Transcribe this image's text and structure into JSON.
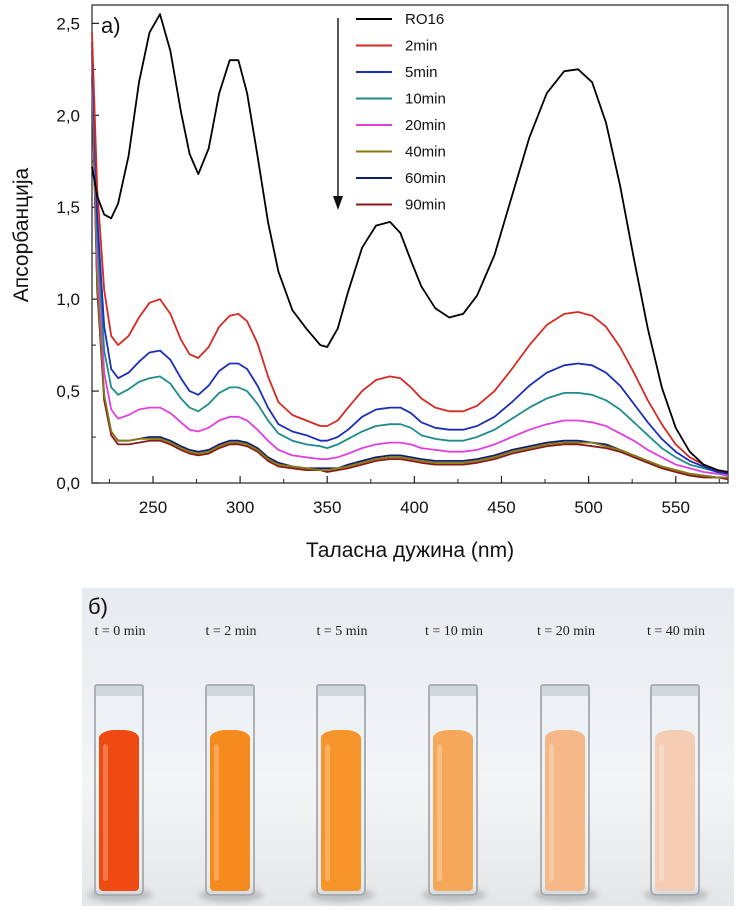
{
  "chart_data": {
    "type": "line",
    "panel_label": "а)",
    "xlabel": "Таласна дужина (nm)",
    "ylabel": "Апсорбанција",
    "xlim": [
      215,
      580
    ],
    "ylim": [
      0,
      2.6
    ],
    "x_ticks": [
      250,
      300,
      350,
      400,
      450,
      500,
      550
    ],
    "x_tick_labels": [
      "250",
      "300",
      "350",
      "400",
      "450",
      "500",
      "550"
    ],
    "y_ticks": [
      0,
      0.5,
      1.0,
      1.5,
      2.0,
      2.5
    ],
    "y_tick_labels": [
      "0,0",
      "0,5",
      "1,0",
      "1,5",
      "2,0",
      "2,5"
    ],
    "legend_position": "top-center",
    "annotation": "arrow pointing down (decreasing absorbance with time)",
    "x": [
      215,
      218,
      222,
      226,
      230,
      236,
      242,
      248,
      254,
      260,
      266,
      271,
      276,
      282,
      288,
      294,
      299,
      304,
      310,
      316,
      322,
      330,
      338,
      346,
      350,
      356,
      362,
      370,
      378,
      386,
      392,
      398,
      404,
      412,
      420,
      428,
      436,
      446,
      456,
      466,
      476,
      486,
      494,
      502,
      510,
      518,
      526,
      534,
      542,
      550,
      558,
      566,
      574,
      580
    ],
    "series": [
      {
        "name": "RO16",
        "color": "#000000",
        "values": [
          1.72,
          1.56,
          1.46,
          1.44,
          1.52,
          1.78,
          2.18,
          2.45,
          2.55,
          2.35,
          2.02,
          1.79,
          1.68,
          1.82,
          2.12,
          2.3,
          2.3,
          2.12,
          1.78,
          1.42,
          1.15,
          0.94,
          0.84,
          0.75,
          0.74,
          0.84,
          1.04,
          1.28,
          1.4,
          1.42,
          1.36,
          1.21,
          1.07,
          0.95,
          0.9,
          0.92,
          1.02,
          1.24,
          1.56,
          1.88,
          2.12,
          2.24,
          2.25,
          2.18,
          1.96,
          1.62,
          1.22,
          0.84,
          0.52,
          0.3,
          0.17,
          0.1,
          0.07,
          0.06
        ]
      },
      {
        "name": "2min",
        "color": "#d42a22",
        "values": [
          2.45,
          1.6,
          1.05,
          0.8,
          0.75,
          0.8,
          0.9,
          0.98,
          1.0,
          0.92,
          0.78,
          0.7,
          0.68,
          0.74,
          0.85,
          0.91,
          0.92,
          0.88,
          0.76,
          0.58,
          0.44,
          0.37,
          0.34,
          0.31,
          0.31,
          0.34,
          0.41,
          0.5,
          0.56,
          0.58,
          0.57,
          0.52,
          0.46,
          0.41,
          0.39,
          0.39,
          0.42,
          0.5,
          0.62,
          0.75,
          0.86,
          0.92,
          0.93,
          0.91,
          0.85,
          0.74,
          0.6,
          0.45,
          0.32,
          0.21,
          0.14,
          0.1,
          0.07,
          0.06
        ]
      },
      {
        "name": "5min",
        "color": "#1a2fb8",
        "values": [
          2.4,
          1.45,
          0.85,
          0.62,
          0.57,
          0.6,
          0.66,
          0.71,
          0.72,
          0.67,
          0.57,
          0.5,
          0.48,
          0.53,
          0.61,
          0.65,
          0.65,
          0.62,
          0.53,
          0.41,
          0.32,
          0.28,
          0.26,
          0.23,
          0.23,
          0.25,
          0.29,
          0.36,
          0.4,
          0.41,
          0.41,
          0.38,
          0.33,
          0.3,
          0.29,
          0.29,
          0.31,
          0.36,
          0.44,
          0.53,
          0.6,
          0.64,
          0.65,
          0.64,
          0.6,
          0.53,
          0.43,
          0.33,
          0.24,
          0.17,
          0.12,
          0.09,
          0.06,
          0.05
        ]
      },
      {
        "name": "10min",
        "color": "#1e8c8c",
        "values": [
          2.35,
          1.35,
          0.72,
          0.52,
          0.48,
          0.51,
          0.55,
          0.57,
          0.58,
          0.54,
          0.46,
          0.41,
          0.39,
          0.43,
          0.49,
          0.52,
          0.52,
          0.5,
          0.43,
          0.34,
          0.27,
          0.23,
          0.21,
          0.2,
          0.19,
          0.21,
          0.24,
          0.28,
          0.31,
          0.32,
          0.32,
          0.3,
          0.26,
          0.24,
          0.23,
          0.23,
          0.25,
          0.29,
          0.35,
          0.41,
          0.46,
          0.49,
          0.49,
          0.48,
          0.45,
          0.4,
          0.33,
          0.26,
          0.19,
          0.14,
          0.1,
          0.08,
          0.06,
          0.05
        ]
      },
      {
        "name": "20min",
        "color": "#e040e0",
        "values": [
          2.3,
          1.25,
          0.6,
          0.4,
          0.35,
          0.37,
          0.4,
          0.41,
          0.41,
          0.38,
          0.33,
          0.29,
          0.28,
          0.3,
          0.34,
          0.36,
          0.36,
          0.34,
          0.29,
          0.23,
          0.18,
          0.15,
          0.14,
          0.13,
          0.13,
          0.14,
          0.16,
          0.19,
          0.21,
          0.22,
          0.22,
          0.21,
          0.19,
          0.18,
          0.17,
          0.17,
          0.18,
          0.21,
          0.25,
          0.29,
          0.32,
          0.34,
          0.34,
          0.33,
          0.31,
          0.27,
          0.23,
          0.18,
          0.14,
          0.1,
          0.08,
          0.06,
          0.05,
          0.04
        ]
      },
      {
        "name": "40min",
        "color": "#8a7a10",
        "values": [
          2.25,
          1.1,
          0.48,
          0.28,
          0.23,
          0.23,
          0.24,
          0.24,
          0.24,
          0.22,
          0.19,
          0.17,
          0.16,
          0.17,
          0.2,
          0.22,
          0.22,
          0.21,
          0.18,
          0.13,
          0.1,
          0.09,
          0.08,
          0.07,
          0.07,
          0.08,
          0.09,
          0.11,
          0.13,
          0.14,
          0.14,
          0.13,
          0.12,
          0.11,
          0.11,
          0.11,
          0.12,
          0.14,
          0.17,
          0.19,
          0.21,
          0.22,
          0.22,
          0.22,
          0.2,
          0.18,
          0.15,
          0.12,
          0.09,
          0.07,
          0.05,
          0.04,
          0.03,
          0.03
        ]
      },
      {
        "name": "60min",
        "color": "#102070",
        "values": [
          2.22,
          1.08,
          0.47,
          0.28,
          0.23,
          0.23,
          0.24,
          0.25,
          0.25,
          0.23,
          0.2,
          0.18,
          0.17,
          0.18,
          0.21,
          0.23,
          0.23,
          0.22,
          0.19,
          0.14,
          0.11,
          0.09,
          0.08,
          0.08,
          0.08,
          0.08,
          0.1,
          0.12,
          0.14,
          0.15,
          0.15,
          0.14,
          0.13,
          0.12,
          0.12,
          0.12,
          0.13,
          0.15,
          0.18,
          0.2,
          0.22,
          0.23,
          0.23,
          0.22,
          0.21,
          0.18,
          0.15,
          0.12,
          0.09,
          0.07,
          0.05,
          0.04,
          0.03,
          0.03
        ]
      },
      {
        "name": "90min",
        "color": "#8a1a1a",
        "values": [
          2.2,
          1.05,
          0.45,
          0.26,
          0.21,
          0.21,
          0.22,
          0.23,
          0.23,
          0.21,
          0.18,
          0.16,
          0.15,
          0.16,
          0.19,
          0.21,
          0.21,
          0.2,
          0.17,
          0.12,
          0.09,
          0.08,
          0.07,
          0.07,
          0.06,
          0.07,
          0.08,
          0.1,
          0.12,
          0.13,
          0.13,
          0.12,
          0.11,
          0.1,
          0.1,
          0.1,
          0.11,
          0.13,
          0.16,
          0.18,
          0.2,
          0.21,
          0.21,
          0.2,
          0.19,
          0.17,
          0.14,
          0.11,
          0.08,
          0.06,
          0.04,
          0.03,
          0.03,
          0.02
        ]
      }
    ]
  },
  "photo": {
    "panel_label": "б)",
    "samples": [
      {
        "label": "t = 0 min",
        "color": "#ee4a12"
      },
      {
        "label": "t = 2 min",
        "color": "#f58a1e"
      },
      {
        "label": "t = 5 min",
        "color": "#f7952a"
      },
      {
        "label": "t = 10 min",
        "color": "#f6a85a"
      },
      {
        "label": "t = 20 min",
        "color": "#f7b889"
      },
      {
        "label": "t = 40 min",
        "color": "#f4cdb4"
      }
    ]
  }
}
